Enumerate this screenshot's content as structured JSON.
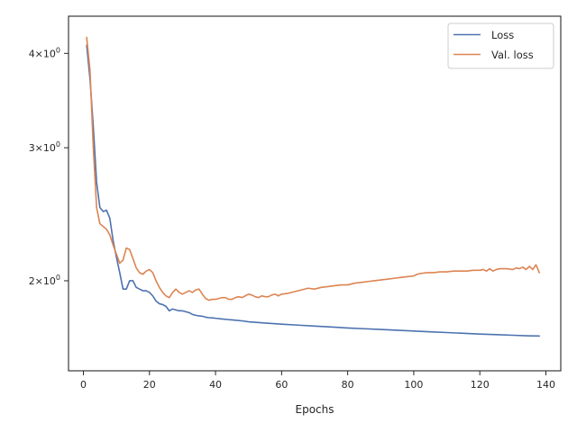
{
  "chart_data": {
    "type": "line",
    "xlabel": "Epochs",
    "ylabel": "",
    "xlim": [
      -4.5,
      144.5
    ],
    "ylim": [
      1.52,
      4.48
    ],
    "yscale": "log",
    "grid": false,
    "legend_position": "top-right",
    "x_ticks": [
      0,
      20,
      40,
      60,
      80,
      100,
      120,
      140
    ],
    "x_tick_labels": [
      "0",
      "20",
      "40",
      "60",
      "80",
      "100",
      "120",
      "140"
    ],
    "y_ticks": [
      {
        "value": 2,
        "mantissa": "2",
        "base": "10",
        "exp": "0"
      },
      {
        "value": 3,
        "mantissa": "3",
        "base": "10",
        "exp": "0"
      },
      {
        "value": 4,
        "mantissa": "4",
        "base": "10",
        "exp": "0"
      }
    ],
    "series": [
      {
        "name": "Loss",
        "color": "#4c72b0",
        "points": [
          [
            1,
            4.1
          ],
          [
            2,
            3.7
          ],
          [
            3,
            3.2
          ],
          [
            4,
            2.7
          ],
          [
            5,
            2.5
          ],
          [
            6,
            2.47
          ],
          [
            7,
            2.48
          ],
          [
            8,
            2.42
          ],
          [
            9,
            2.26
          ],
          [
            10,
            2.15
          ],
          [
            11,
            2.05
          ],
          [
            12,
            1.95
          ],
          [
            13,
            1.95
          ],
          [
            14,
            2.0
          ],
          [
            15,
            2.0
          ],
          [
            16,
            1.96
          ],
          [
            17,
            1.95
          ],
          [
            18,
            1.94
          ],
          [
            19,
            1.94
          ],
          [
            20,
            1.93
          ],
          [
            21,
            1.91
          ],
          [
            22,
            1.88
          ],
          [
            23,
            1.865
          ],
          [
            24,
            1.86
          ],
          [
            25,
            1.85
          ],
          [
            26,
            1.825
          ],
          [
            27,
            1.835
          ],
          [
            28,
            1.83
          ],
          [
            29,
            1.825
          ],
          [
            30,
            1.825
          ],
          [
            31,
            1.82
          ],
          [
            32,
            1.815
          ],
          [
            33,
            1.805
          ],
          [
            34,
            1.8
          ],
          [
            35,
            1.797
          ],
          [
            36,
            1.795
          ],
          [
            37,
            1.79
          ],
          [
            38,
            1.787
          ],
          [
            39,
            1.786
          ],
          [
            40,
            1.784
          ],
          [
            42,
            1.78
          ],
          [
            45,
            1.775
          ],
          [
            48,
            1.77
          ],
          [
            50,
            1.765
          ],
          [
            55,
            1.758
          ],
          [
            60,
            1.752
          ],
          [
            65,
            1.747
          ],
          [
            70,
            1.742
          ],
          [
            75,
            1.737
          ],
          [
            80,
            1.732
          ],
          [
            85,
            1.728
          ],
          [
            90,
            1.724
          ],
          [
            95,
            1.72
          ],
          [
            100,
            1.716
          ],
          [
            105,
            1.712
          ],
          [
            110,
            1.708
          ],
          [
            115,
            1.704
          ],
          [
            120,
            1.7
          ],
          [
            125,
            1.697
          ],
          [
            130,
            1.694
          ],
          [
            135,
            1.691
          ],
          [
            138,
            1.69
          ]
        ]
      },
      {
        "name": "Val. loss",
        "color": "#dd8452",
        "points": [
          [
            1,
            4.2
          ],
          [
            2,
            3.8
          ],
          [
            3,
            3.0
          ],
          [
            4,
            2.5
          ],
          [
            5,
            2.38
          ],
          [
            6,
            2.36
          ],
          [
            7,
            2.34
          ],
          [
            8,
            2.3
          ],
          [
            9,
            2.23
          ],
          [
            10,
            2.17
          ],
          [
            11,
            2.11
          ],
          [
            12,
            2.13
          ],
          [
            13,
            2.21
          ],
          [
            14,
            2.2
          ],
          [
            15,
            2.14
          ],
          [
            16,
            2.08
          ],
          [
            17,
            2.05
          ],
          [
            18,
            2.04
          ],
          [
            19,
            2.06
          ],
          [
            20,
            2.07
          ],
          [
            21,
            2.05
          ],
          [
            22,
            2.0
          ],
          [
            23,
            1.96
          ],
          [
            24,
            1.93
          ],
          [
            25,
            1.91
          ],
          [
            26,
            1.9
          ],
          [
            27,
            1.93
          ],
          [
            28,
            1.95
          ],
          [
            29,
            1.93
          ],
          [
            30,
            1.92
          ],
          [
            31,
            1.93
          ],
          [
            32,
            1.94
          ],
          [
            33,
            1.93
          ],
          [
            34,
            1.945
          ],
          [
            35,
            1.95
          ],
          [
            36,
            1.92
          ],
          [
            37,
            1.895
          ],
          [
            38,
            1.885
          ],
          [
            39,
            1.89
          ],
          [
            40,
            1.89
          ],
          [
            41,
            1.895
          ],
          [
            42,
            1.9
          ],
          [
            43,
            1.9
          ],
          [
            44,
            1.89
          ],
          [
            45,
            1.89
          ],
          [
            46,
            1.9
          ],
          [
            47,
            1.905
          ],
          [
            48,
            1.9
          ],
          [
            49,
            1.91
          ],
          [
            50,
            1.92
          ],
          [
            51,
            1.915
          ],
          [
            52,
            1.905
          ],
          [
            53,
            1.9
          ],
          [
            54,
            1.91
          ],
          [
            55,
            1.905
          ],
          [
            56,
            1.905
          ],
          [
            57,
            1.915
          ],
          [
            58,
            1.92
          ],
          [
            59,
            1.91
          ],
          [
            60,
            1.92
          ],
          [
            62,
            1.925
          ],
          [
            64,
            1.935
          ],
          [
            66,
            1.945
          ],
          [
            68,
            1.955
          ],
          [
            70,
            1.95
          ],
          [
            72,
            1.96
          ],
          [
            74,
            1.965
          ],
          [
            76,
            1.97
          ],
          [
            78,
            1.975
          ],
          [
            80,
            1.975
          ],
          [
            82,
            1.985
          ],
          [
            84,
            1.99
          ],
          [
            86,
            1.995
          ],
          [
            88,
            2.0
          ],
          [
            90,
            2.005
          ],
          [
            92,
            2.01
          ],
          [
            94,
            2.015
          ],
          [
            96,
            2.02
          ],
          [
            98,
            2.025
          ],
          [
            100,
            2.03
          ],
          [
            101,
            2.04
          ],
          [
            102,
            2.045
          ],
          [
            104,
            2.05
          ],
          [
            106,
            2.05
          ],
          [
            108,
            2.055
          ],
          [
            110,
            2.055
          ],
          [
            112,
            2.06
          ],
          [
            114,
            2.06
          ],
          [
            116,
            2.06
          ],
          [
            118,
            2.065
          ],
          [
            120,
            2.065
          ],
          [
            121,
            2.07
          ],
          [
            122,
            2.06
          ],
          [
            123,
            2.075
          ],
          [
            124,
            2.06
          ],
          [
            125,
            2.07
          ],
          [
            126,
            2.075
          ],
          [
            128,
            2.075
          ],
          [
            130,
            2.07
          ],
          [
            131,
            2.08
          ],
          [
            132,
            2.075
          ],
          [
            133,
            2.085
          ],
          [
            134,
            2.07
          ],
          [
            135,
            2.09
          ],
          [
            136,
            2.07
          ],
          [
            137,
            2.1
          ],
          [
            138,
            2.05
          ]
        ]
      }
    ]
  }
}
